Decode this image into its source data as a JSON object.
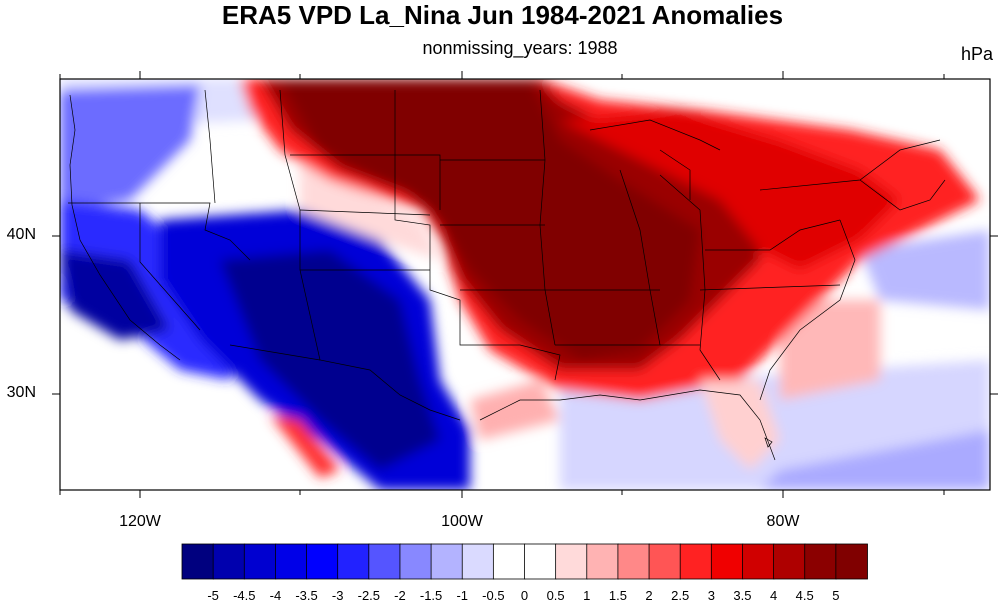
{
  "title": "ERA5 VPD La_Nina Jun 1984-2021 Anomalies",
  "subtitle": "nonmissing_years: 1988",
  "units": "hPa",
  "map": {
    "projection": "lat-lon cylindrical",
    "extent": {
      "lon": [
        -125,
        -67
      ],
      "lat": [
        24,
        50
      ]
    },
    "variable": "Vapor pressure deficit anomaly",
    "lon_labels": [
      "120W",
      "100W",
      "80W"
    ],
    "lat_labels": [
      "40N",
      "30N"
    ],
    "pattern_note": "Strong positive (red) anomalies across the Great Plains, Midwest and Southeast; negative (blue) anomalies over the Southwest and Pacific Northwest coast."
  },
  "colorbar": {
    "labels": [
      "-5",
      "-4.5",
      "-4",
      "-3.5",
      "-3",
      "-2.5",
      "-2",
      "-1.5",
      "-1",
      "-0.5",
      "0",
      "0.5",
      "1",
      "1.5",
      "2",
      "2.5",
      "3",
      "3.5",
      "4",
      "4.5",
      "5"
    ],
    "colors": [
      "#00007f",
      "#0000ae",
      "#0000d0",
      "#0000e8",
      "#0000ff",
      "#2222ff",
      "#5555ff",
      "#8888ff",
      "#b3b3ff",
      "#dadaff",
      "#ffffff",
      "#ffffff",
      "#ffdada",
      "#ffb3b3",
      "#ff8888",
      "#ff5555",
      "#ff2222",
      "#f00000",
      "#d00000",
      "#ae0000",
      "#8b0000",
      "#800000"
    ]
  }
}
